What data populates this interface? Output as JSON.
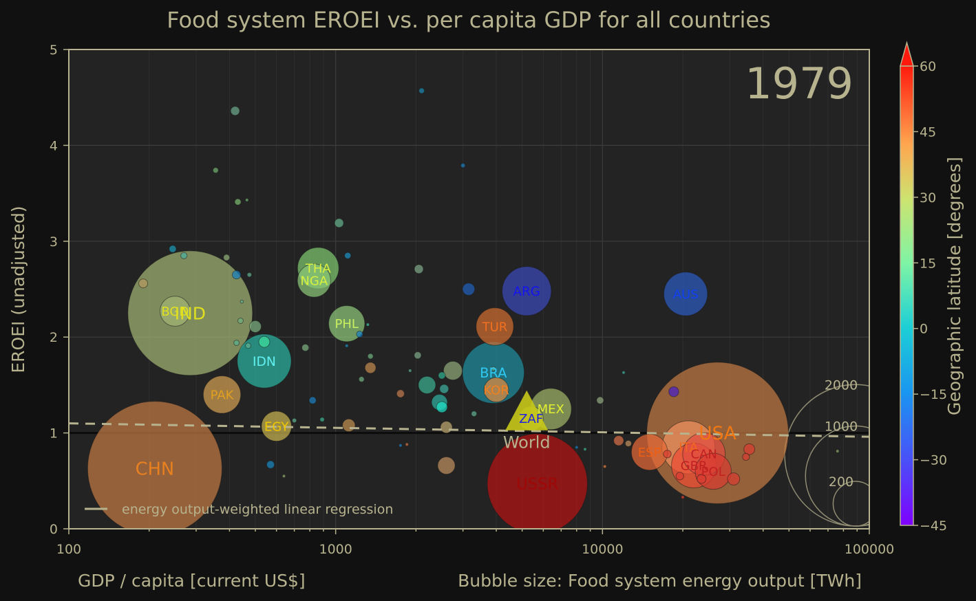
{
  "chart_data": {
    "type": "scatter",
    "title": "Food system EROEI vs. per capita GDP for all countries",
    "year_label": "1979",
    "xlabel": "GDP / capita [current US$]",
    "ylabel": "EROEI (unadjusted)",
    "size_label": "Bubble size: Food system energy output [TWh]",
    "colorbar_label": "Geographic latitude [degrees]",
    "x_scale": "log",
    "xlim": [
      100,
      100000
    ],
    "ylim": [
      0,
      5
    ],
    "x_ticks": [
      "100",
      "1000",
      "10000",
      "100000"
    ],
    "y_ticks": [
      "0",
      "1",
      "2",
      "3",
      "4",
      "5"
    ],
    "colorbar_ticks": [
      "60",
      "45",
      "30",
      "15",
      "0",
      "−15",
      "−30",
      "−45"
    ],
    "colorbar_range": [
      -45,
      60
    ],
    "grid": true,
    "legend": {
      "text": "energy output-weighted linear regression",
      "placement": "bottom-left"
    },
    "regression_line": {
      "x": [
        100,
        100000
      ],
      "y": [
        1.1,
        0.96
      ]
    },
    "reference_line_y": 1,
    "size_legend": [
      "2000",
      "1000",
      "200"
    ],
    "world_marker": {
      "label": "World",
      "x": 5200,
      "y": 1.2,
      "color": "#c8c81a"
    },
    "labeled_points": [
      {
        "label": "CHN",
        "x": 210,
        "y": 0.63,
        "size": 1800,
        "color": "#c27a44",
        "text_color": "#e88020"
      },
      {
        "label": "IND",
        "x": 285,
        "y": 2.25,
        "size": 1550,
        "color": "#a2b474",
        "text_color": "#e0e020"
      },
      {
        "label": "BGD",
        "x": 250,
        "y": 2.27,
        "size": 90,
        "color": "#a2b474",
        "text_color": "#e0e020"
      },
      {
        "label": "PAK",
        "x": 375,
        "y": 1.4,
        "size": 140,
        "color": "#d2a052",
        "text_color": "#e0a020"
      },
      {
        "label": "IDN",
        "x": 540,
        "y": 1.75,
        "size": 290,
        "color": "#2ab3a0",
        "text_color": "#60f0f0"
      },
      {
        "label": "EGY",
        "x": 600,
        "y": 1.07,
        "size": 90,
        "color": "#c8b450",
        "text_color": "#f0c800"
      },
      {
        "label": "THA",
        "x": 860,
        "y": 2.72,
        "size": 170,
        "color": "#7ec870",
        "text_color": "#d8f040"
      },
      {
        "label": "NGA",
        "x": 830,
        "y": 2.59,
        "size": 110,
        "color": "#8ac878",
        "text_color": "#d8f040"
      },
      {
        "label": "PHL",
        "x": 1100,
        "y": 2.14,
        "size": 130,
        "color": "#8ec878",
        "text_color": "#c8f060"
      },
      {
        "label": "BRA",
        "x": 3900,
        "y": 1.63,
        "size": 380,
        "color": "#1e8ea0",
        "text_color": "#30c8f0"
      },
      {
        "label": "KOR",
        "x": 4000,
        "y": 1.45,
        "size": 60,
        "color": "#e08a40",
        "text_color": "#f08020"
      },
      {
        "label": "TUR",
        "x": 3950,
        "y": 2.11,
        "size": 140,
        "color": "#d06c30",
        "text_color": "#f07020"
      },
      {
        "label": "ARG",
        "x": 5200,
        "y": 2.48,
        "size": 240,
        "color": "#3c4ab8",
        "text_color": "#1414f0"
      },
      {
        "label": "ZAF",
        "x": 5400,
        "y": 1.15,
        "size": 60,
        "color": "#b0c040",
        "text_color": "#2020e0"
      },
      {
        "label": "MEX",
        "x": 6400,
        "y": 1.25,
        "size": 170,
        "color": "#a0b468",
        "text_color": "#e0f030"
      },
      {
        "label": "USSR",
        "x": 5700,
        "y": 0.47,
        "size": 1000,
        "color": "#b41414",
        "text_color": "#a00808"
      },
      {
        "label": "AUS",
        "x": 20500,
        "y": 2.45,
        "size": 190,
        "color": "#2c5cc0",
        "text_color": "#1040f0"
      },
      {
        "label": "USA",
        "x": 27000,
        "y": 1.0,
        "size": 2000,
        "color": "#c27a44",
        "text_color": "#f07814"
      },
      {
        "label": "ESP",
        "x": 15000,
        "y": 0.8,
        "size": 130,
        "color": "#e66a38",
        "text_color": "#f06014"
      },
      {
        "label": "ITA",
        "x": 21000,
        "y": 0.85,
        "size": 280,
        "color": "#f09060",
        "text_color": "#f06820"
      },
      {
        "label": "CAN",
        "x": 24000,
        "y": 0.78,
        "size": 180,
        "color": "#e04c40",
        "text_color": "#c02020"
      },
      {
        "label": "GBR",
        "x": 22000,
        "y": 0.66,
        "size": 200,
        "color": "#ec4c34",
        "text_color": "#c02020"
      },
      {
        "label": "POL",
        "x": 26000,
        "y": 0.6,
        "size": 130,
        "color": "#d83c30",
        "text_color": "#c02020"
      }
    ],
    "other_points": [
      {
        "x": 2100,
        "y": 4.57,
        "size": 3,
        "color": "#1c88b0"
      },
      {
        "x": 420,
        "y": 4.36,
        "size": 8,
        "color": "#6ca88c"
      },
      {
        "x": 3000,
        "y": 3.79,
        "size": 2,
        "color": "#1e78b8"
      },
      {
        "x": 355,
        "y": 3.74,
        "size": 3,
        "color": "#70b070"
      },
      {
        "x": 430,
        "y": 3.41,
        "size": 4,
        "color": "#7cb870"
      },
      {
        "x": 465,
        "y": 3.43,
        "size": 1,
        "color": "#70b070"
      },
      {
        "x": 1030,
        "y": 3.19,
        "size": 8,
        "color": "#64b08c"
      },
      {
        "x": 245,
        "y": 2.92,
        "size": 5,
        "color": "#1c9ab8"
      },
      {
        "x": 270,
        "y": 2.85,
        "size": 4,
        "color": "#4cb0a0"
      },
      {
        "x": 390,
        "y": 2.83,
        "size": 4,
        "color": "#90b078"
      },
      {
        "x": 1110,
        "y": 2.85,
        "size": 4,
        "color": "#1c90c0"
      },
      {
        "x": 2050,
        "y": 2.71,
        "size": 8,
        "color": "#7ea888"
      },
      {
        "x": 190,
        "y": 2.56,
        "size": 8,
        "color": "#b49a60"
      },
      {
        "x": 425,
        "y": 2.65,
        "size": 7,
        "color": "#1880c0"
      },
      {
        "x": 475,
        "y": 2.65,
        "size": 2,
        "color": "#60b090"
      },
      {
        "x": 3150,
        "y": 2.5,
        "size": 15,
        "color": "#2060b8"
      },
      {
        "x": 445,
        "y": 2.37,
        "size": 1,
        "color": "#60b090"
      },
      {
        "x": 440,
        "y": 2.17,
        "size": 3,
        "color": "#70b080"
      },
      {
        "x": 500,
        "y": 2.11,
        "size": 14,
        "color": "#7cb080"
      },
      {
        "x": 1230,
        "y": 2.03,
        "size": 4,
        "color": "#1a80c0"
      },
      {
        "x": 1320,
        "y": 2.13,
        "size": 1,
        "color": "#40c0a0"
      },
      {
        "x": 425,
        "y": 1.94,
        "size": 3,
        "color": "#58b090"
      },
      {
        "x": 470,
        "y": 1.91,
        "size": 3,
        "color": "#60b090"
      },
      {
        "x": 540,
        "y": 1.95,
        "size": 12,
        "color": "#40e0a0"
      },
      {
        "x": 770,
        "y": 1.89,
        "size": 5,
        "color": "#7cb080"
      },
      {
        "x": 1100,
        "y": 1.91,
        "size": 1,
        "color": "#2090c0"
      },
      {
        "x": 1350,
        "y": 1.8,
        "size": 3,
        "color": "#70b080"
      },
      {
        "x": 2030,
        "y": 1.81,
        "size": 5,
        "color": "#7ea888"
      },
      {
        "x": 1350,
        "y": 1.68,
        "size": 12,
        "color": "#c08a50"
      },
      {
        "x": 1250,
        "y": 1.56,
        "size": 3,
        "color": "#70b080"
      },
      {
        "x": 2200,
        "y": 1.5,
        "size": 30,
        "color": "#3cb090"
      },
      {
        "x": 2500,
        "y": 1.6,
        "size": 5,
        "color": "#30b090"
      },
      {
        "x": 2750,
        "y": 1.65,
        "size": 35,
        "color": "#90a878"
      },
      {
        "x": 1900,
        "y": 1.65,
        "size": 1,
        "color": "#60b090"
      },
      {
        "x": 2550,
        "y": 1.46,
        "size": 8,
        "color": "#40b0a0"
      },
      {
        "x": 2450,
        "y": 1.32,
        "size": 25,
        "color": "#30b0a0"
      },
      {
        "x": 2500,
        "y": 1.27,
        "size": 12,
        "color": "#20e0c8"
      },
      {
        "x": 1750,
        "y": 1.41,
        "size": 6,
        "color": "#c07a50"
      },
      {
        "x": 820,
        "y": 1.34,
        "size": 5,
        "color": "#1e80c0"
      },
      {
        "x": 1120,
        "y": 1.08,
        "size": 16,
        "color": "#c09050"
      },
      {
        "x": 890,
        "y": 1.14,
        "size": 2,
        "color": "#40b090"
      },
      {
        "x": 700,
        "y": 1.13,
        "size": 2,
        "color": "#60b090"
      },
      {
        "x": 2600,
        "y": 1.06,
        "size": 14,
        "color": "#c0a870"
      },
      {
        "x": 3300,
        "y": 1.2,
        "size": 3,
        "color": "#60b090"
      },
      {
        "x": 3900,
        "y": 1.67,
        "size": 2,
        "color": "#60b090"
      },
      {
        "x": 9800,
        "y": 1.34,
        "size": 5,
        "color": "#90a880"
      },
      {
        "x": 12000,
        "y": 1.63,
        "size": 1,
        "color": "#40b0a0"
      },
      {
        "x": 18500,
        "y": 1.43,
        "size": 10,
        "color": "#4820c8"
      },
      {
        "x": 570,
        "y": 0.67,
        "size": 6,
        "color": "#1a88c0"
      },
      {
        "x": 640,
        "y": 0.55,
        "size": 1,
        "color": "#90a870"
      },
      {
        "x": 2600,
        "y": 0.66,
        "size": 30,
        "color": "#c09060"
      },
      {
        "x": 1850,
        "y": 0.88,
        "size": 1,
        "color": "#d07040"
      },
      {
        "x": 1750,
        "y": 0.87,
        "size": 1,
        "color": "#2080c0"
      },
      {
        "x": 8000,
        "y": 0.85,
        "size": 1,
        "color": "#1880c0"
      },
      {
        "x": 8600,
        "y": 0.83,
        "size": 1,
        "color": "#40b090"
      },
      {
        "x": 10200,
        "y": 0.65,
        "size": 1,
        "color": "#e08040"
      },
      {
        "x": 11500,
        "y": 0.92,
        "size": 10,
        "color": "#d87048"
      },
      {
        "x": 12500,
        "y": 0.89,
        "size": 4,
        "color": "#c09060"
      },
      {
        "x": 17500,
        "y": 0.78,
        "size": 6,
        "color": "#d83c30"
      },
      {
        "x": 19500,
        "y": 0.55,
        "size": 6,
        "color": "#d83c30"
      },
      {
        "x": 23500,
        "y": 0.52,
        "size": 8,
        "color": "#d83c30"
      },
      {
        "x": 31000,
        "y": 0.52,
        "size": 15,
        "color": "#d83c30"
      },
      {
        "x": 34500,
        "y": 0.75,
        "size": 5,
        "color": "#d83c30"
      },
      {
        "x": 35500,
        "y": 0.83,
        "size": 12,
        "color": "#d83c30"
      },
      {
        "x": 20000,
        "y": 0.33,
        "size": 1,
        "color": "#e04030"
      },
      {
        "x": 76000,
        "y": 0.81,
        "size": 1,
        "color": "#90a870"
      }
    ]
  }
}
